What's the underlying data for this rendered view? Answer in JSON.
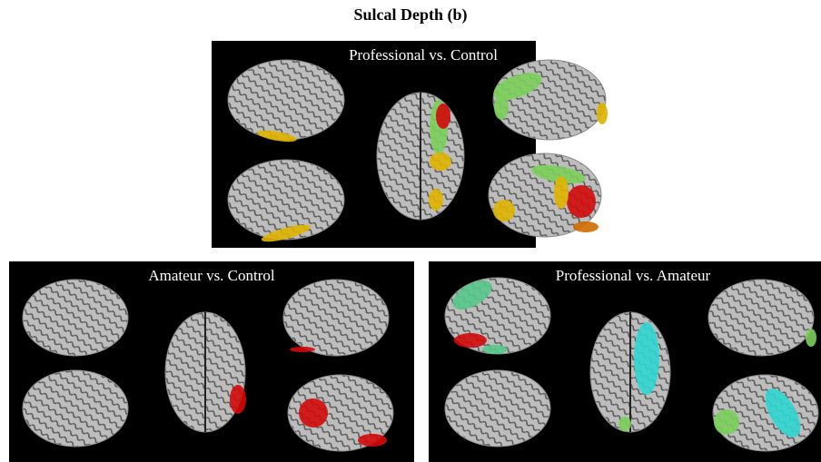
{
  "title": "Sulcal Depth (b)",
  "panels": [
    {
      "title": "Professional vs. Control"
    },
    {
      "title": "Amateur vs. Control"
    },
    {
      "title": "Professional vs. Amateur"
    }
  ]
}
